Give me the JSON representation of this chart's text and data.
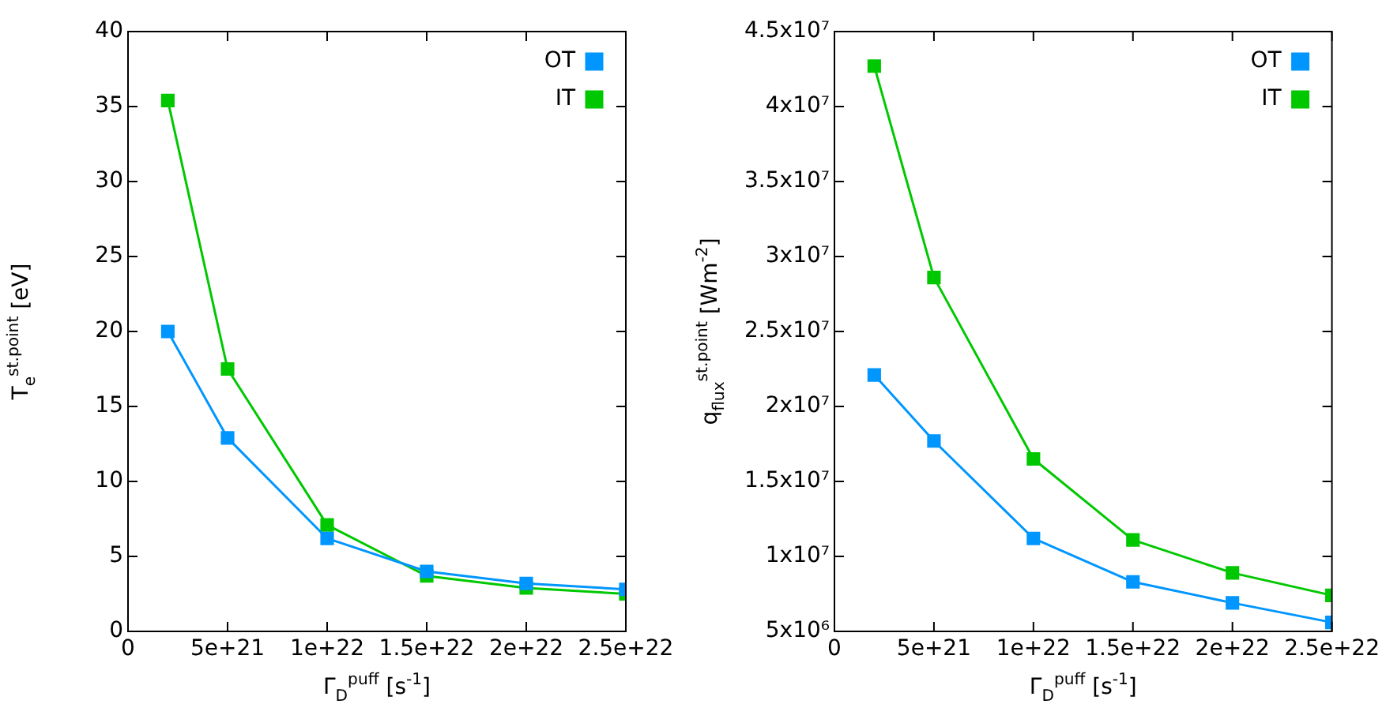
{
  "chart_data": [
    {
      "type": "line",
      "xlabel": "Γ$_{D}$$^{puff}$ [s$^{-1}$]",
      "ylabel": "T$_{e}$$^{st.point}$ [eV]",
      "x": [
        2e+21,
        5e+21,
        1e+22,
        1.5e+22,
        2e+22,
        2.5e+22
      ],
      "series": [
        {
          "name": "IT",
          "color": "#00c800",
          "values": [
            35.4,
            17.5,
            7.1,
            3.7,
            2.9,
            2.5
          ]
        },
        {
          "name": "OT",
          "color": "#0096ff",
          "values": [
            20.0,
            12.9,
            6.2,
            4.0,
            3.2,
            2.8
          ]
        }
      ],
      "xlim": [
        0,
        2.5e+22
      ],
      "xticks": [
        0,
        {
          "value": 5e+21,
          "label": "5e+21"
        },
        {
          "value": 1e+22,
          "label": "1e+22"
        },
        {
          "value": 1.5e+22,
          "label": "1.5e+22"
        },
        {
          "value": 2e+22,
          "label": "2e+22"
        },
        {
          "value": 2.5e+22,
          "label": "2.5e+22"
        }
      ],
      "ylim": [
        0,
        40
      ],
      "yticks": [
        0,
        5,
        10,
        15,
        20,
        25,
        30,
        35,
        40
      ],
      "legend": "top right",
      "marker": "square",
      "line_style": "solid"
    },
    {
      "type": "line",
      "xlabel": "Γ$_{D}$$^{puff}$ [s$^{-1}$]",
      "ylabel": "q$_{flux}$$^{st.point}$ [Wm$^{-2}$]",
      "x": [
        2e+21,
        5e+21,
        1e+22,
        1.5e+22,
        2e+22,
        2.5e+22
      ],
      "series": [
        {
          "name": "IT",
          "color": "#00c800",
          "values": [
            42700000.0,
            28600000.0,
            16500000.0,
            11100000.0,
            8900000.0,
            7400000.0
          ]
        },
        {
          "name": "OT",
          "color": "#0096ff",
          "values": [
            22100000.0,
            17700000.0,
            11200000.0,
            8300000.0,
            6900000.0,
            5600000.0
          ]
        }
      ],
      "xlim": [
        0,
        2.5e+22
      ],
      "xticks": [
        0,
        {
          "value": 5e+21,
          "label": "5e+21"
        },
        {
          "value": 1e+22,
          "label": "1e+22"
        },
        {
          "value": 1.5e+22,
          "label": "1.5e+22"
        },
        {
          "value": 2e+22,
          "label": "2e+22"
        },
        {
          "value": 2.5e+22,
          "label": "2.5e+22"
        }
      ],
      "ylim": [
        5000000.0,
        45000000.0
      ],
      "yticks": [
        {
          "value": 5000000.0,
          "label": "5x10⁶"
        },
        {
          "value": 10000000.0,
          "label": "1x10⁷"
        },
        {
          "value": 15000000.0,
          "label": "1.5x10⁷"
        },
        {
          "value": 20000000.0,
          "label": "2x10⁷"
        },
        {
          "value": 25000000.0,
          "label": "2.5x10⁷"
        },
        {
          "value": 30000000.0,
          "label": "3x10⁷"
        },
        {
          "value": 35000000.0,
          "label": "3.5x10⁷"
        },
        {
          "value": 40000000.0,
          "label": "4x10⁷"
        },
        {
          "value": 45000000.0,
          "label": "4.5x10⁷"
        }
      ],
      "legend": "top right",
      "marker": "square",
      "line_style": "solid"
    }
  ]
}
